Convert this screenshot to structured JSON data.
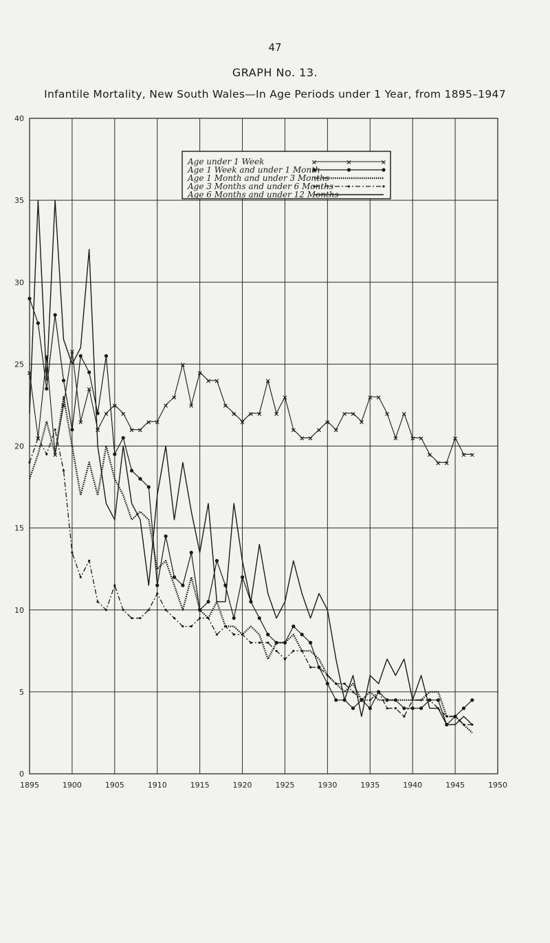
{
  "page": {
    "number": "47",
    "heading": "GRAPH No. 13.",
    "title": "Infantile Mortality, New South Wales—In Age Periods under 1 Year, from 1895–1947"
  },
  "colors": {
    "ink": "#1a1a1a",
    "paper": "#f2f2ef",
    "grid": "#2a2a2a"
  },
  "chart_data": {
    "type": "line",
    "title": "Infantile Mortality, New South Wales—In Age Periods under 1 Year, from 1895–1947",
    "xlabel": "",
    "ylabel": "",
    "xlim": [
      1895,
      1950
    ],
    "ylim": [
      0,
      40
    ],
    "x_ticks": [
      "1895",
      "1900",
      "1905",
      "1910",
      "1915",
      "1920",
      "1925",
      "1930",
      "1935",
      "1940",
      "1945",
      "1950"
    ],
    "y_ticks": [
      "0",
      "5",
      "10",
      "15",
      "20",
      "25",
      "30",
      "35",
      "40"
    ],
    "grid": true,
    "legend_position": "top-center",
    "x": [
      1895,
      1896,
      1897,
      1898,
      1899,
      1900,
      1901,
      1902,
      1903,
      1904,
      1905,
      1906,
      1907,
      1908,
      1909,
      1910,
      1911,
      1912,
      1913,
      1914,
      1915,
      1916,
      1917,
      1918,
      1919,
      1920,
      1921,
      1922,
      1923,
      1924,
      1925,
      1926,
      1927,
      1928,
      1929,
      1930,
      1931,
      1932,
      1933,
      1934,
      1935,
      1936,
      1937,
      1938,
      1939,
      1940,
      1941,
      1942,
      1943,
      1944,
      1945,
      1946,
      1947
    ],
    "series": [
      {
        "name": "Age under 1 Week",
        "marker": "x",
        "values": [
          24.5,
          20.5,
          25.5,
          19.5,
          22.5,
          25.8,
          21.5,
          23.5,
          21.0,
          22.0,
          22.5,
          22.0,
          21.0,
          21.0,
          21.5,
          21.5,
          22.5,
          23.0,
          25.0,
          22.5,
          24.5,
          24.0,
          24.0,
          22.5,
          22.0,
          21.5,
          22.0,
          22.0,
          24.0,
          22.0,
          23.0,
          21.0,
          20.5,
          20.5,
          21.0,
          21.5,
          21.0,
          22.0,
          22.0,
          21.5,
          23.0,
          23.0,
          22.0,
          20.5,
          22.0,
          20.5,
          20.5,
          19.5,
          19.0,
          19.0,
          20.5,
          19.5,
          19.5
        ]
      },
      {
        "name": "Age 1 Week and under 1 Month",
        "marker": "dot",
        "values": [
          29.0,
          27.5,
          23.5,
          28.0,
          24.0,
          21.0,
          25.5,
          24.5,
          22.0,
          25.5,
          19.5,
          20.5,
          18.5,
          18.0,
          17.5,
          11.5,
          14.5,
          12.0,
          11.5,
          13.5,
          10.0,
          10.5,
          13.0,
          11.5,
          9.5,
          12.0,
          10.5,
          9.5,
          8.5,
          8.0,
          8.0,
          9.0,
          8.5,
          8.0,
          6.5,
          5.5,
          4.5,
          4.5,
          4.0,
          4.5,
          4.0,
          5.0,
          4.5,
          4.5,
          4.0,
          4.0,
          4.0,
          4.5,
          4.5,
          3.0,
          3.5,
          4.0,
          4.5
        ]
      },
      {
        "name": "Age 1 Month and under 3 Months",
        "marker": "dash",
        "values": [
          18.0,
          19.5,
          21.5,
          19.5,
          23.0,
          20.0,
          17.0,
          19.0,
          17.0,
          20.0,
          18.0,
          17.0,
          15.5,
          16.0,
          15.5,
          12.5,
          13.0,
          11.5,
          10.0,
          12.0,
          10.0,
          9.5,
          10.5,
          9.0,
          9.0,
          8.5,
          9.0,
          8.5,
          7.0,
          8.0,
          8.0,
          8.5,
          7.5,
          7.5,
          7.0,
          6.0,
          5.5,
          5.0,
          5.5,
          4.5,
          5.0,
          4.5,
          4.5,
          4.5,
          4.5,
          4.5,
          4.5,
          5.0,
          5.0,
          3.5,
          3.5,
          3.0,
          2.5
        ]
      },
      {
        "name": "Age 3 Months and under 6 Months",
        "marker": "dot-dash",
        "values": [
          19.0,
          20.5,
          19.5,
          21.0,
          18.5,
          13.5,
          12.0,
          13.0,
          10.5,
          10.0,
          11.5,
          10.0,
          9.5,
          9.5,
          10.0,
          11.0,
          10.0,
          9.5,
          9.0,
          9.0,
          9.5,
          9.5,
          8.5,
          9.0,
          8.5,
          8.5,
          8.0,
          8.0,
          8.0,
          7.5,
          7.0,
          7.5,
          7.5,
          6.5,
          6.5,
          6.0,
          5.5,
          5.5,
          5.0,
          4.5,
          4.5,
          5.0,
          4.0,
          4.0,
          3.5,
          4.5,
          4.5,
          4.5,
          4.0,
          3.5,
          3.5,
          3.0,
          3.0
        ]
      },
      {
        "name": "Age 6 Months and under 12 Months",
        "marker": "solid",
        "values": [
          22.0,
          35.0,
          24.0,
          35.0,
          26.5,
          25.0,
          26.0,
          32.0,
          20.0,
          16.5,
          15.5,
          20.0,
          16.5,
          15.5,
          11.5,
          17.0,
          20.0,
          15.5,
          19.0,
          16.0,
          13.5,
          16.5,
          10.5,
          10.5,
          16.5,
          13.0,
          10.5,
          14.0,
          11.0,
          9.5,
          10.5,
          13.0,
          11.0,
          9.5,
          11.0,
          10.0,
          7.0,
          4.5,
          6.0,
          3.5,
          6.0,
          5.5,
          7.0,
          6.0,
          7.0,
          4.5,
          6.0,
          4.0,
          4.0,
          3.0,
          3.0,
          3.5,
          3.0
        ]
      }
    ]
  }
}
